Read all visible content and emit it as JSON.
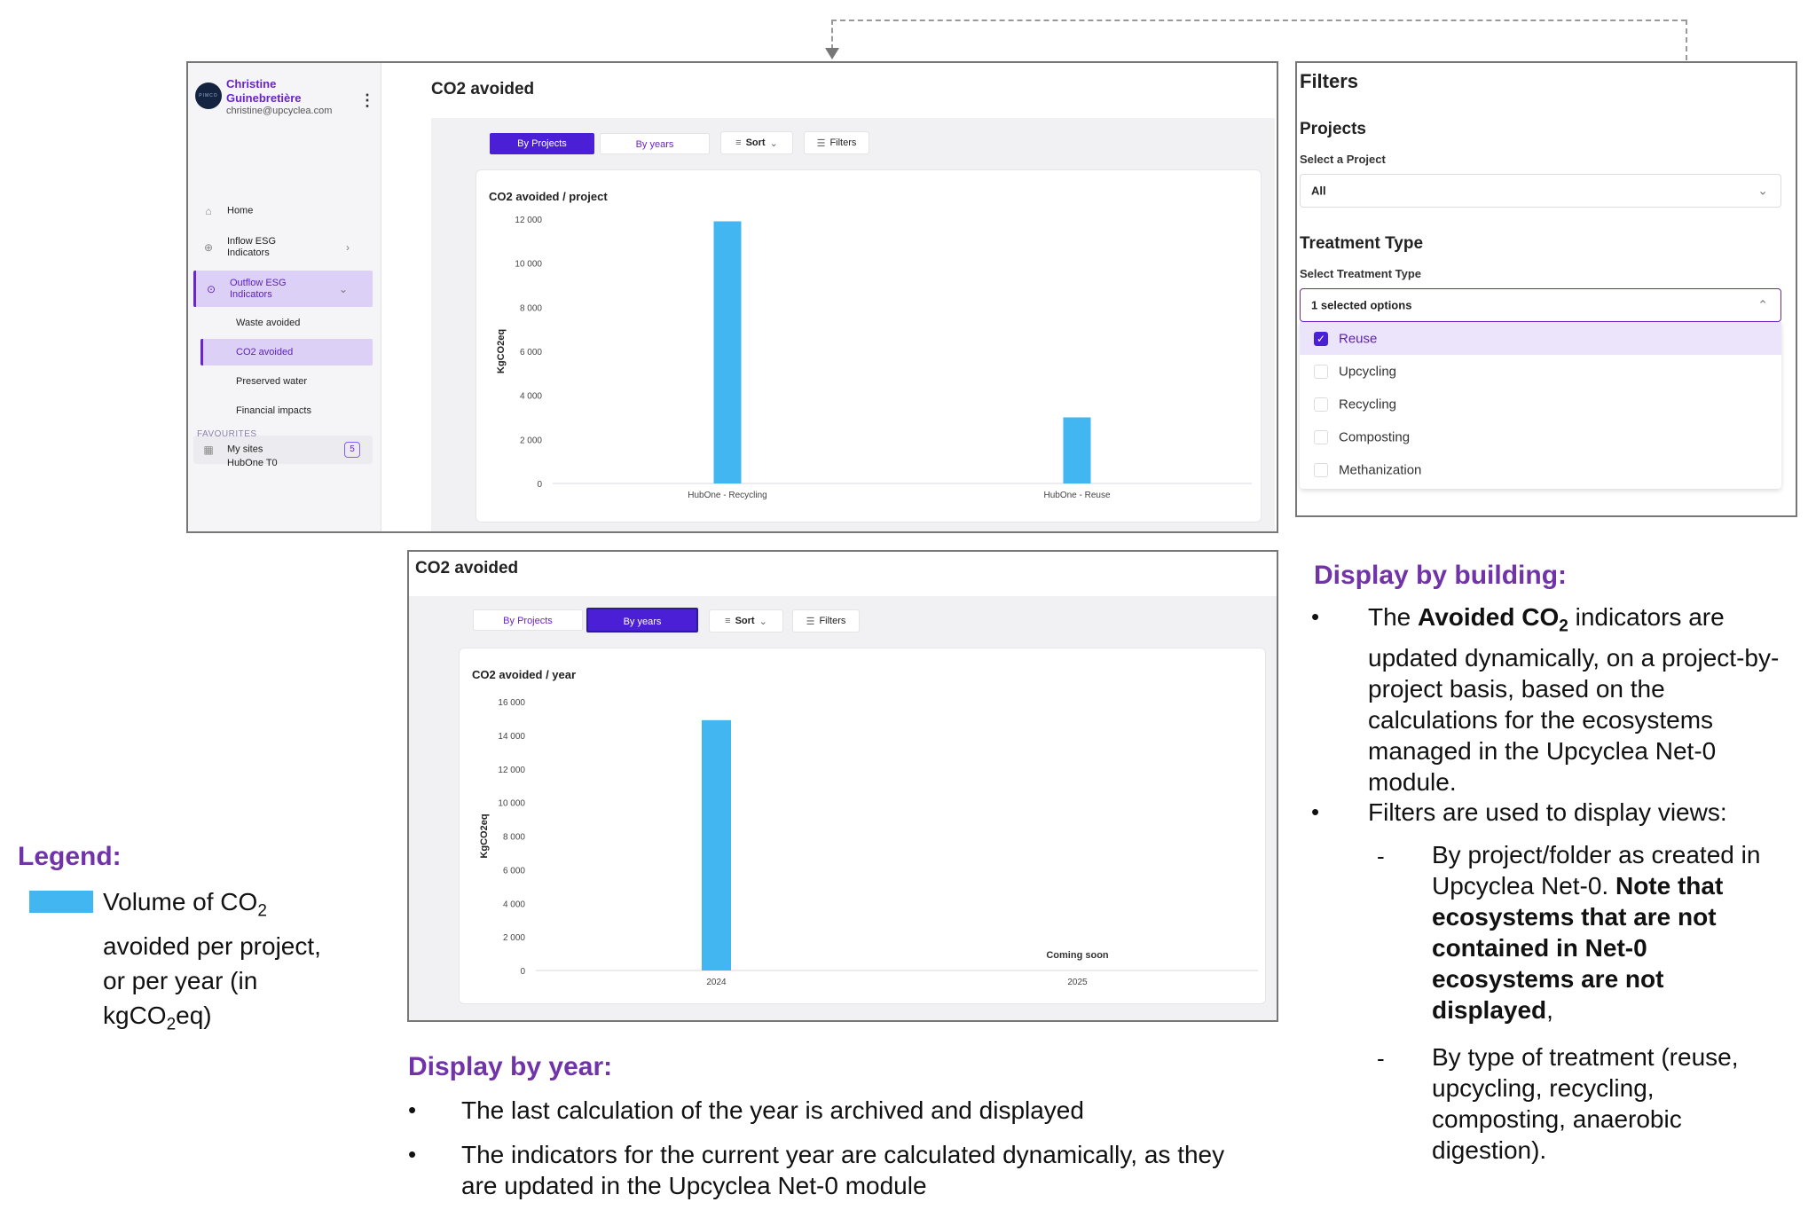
{
  "app": {
    "user_name": "Christine Guinebretière",
    "user_email": "christine@upcyclea.com",
    "avatar_text": "PIMCO",
    "nav": {
      "home": "Home",
      "inflow": "Inflow ESG Indicators",
      "outflow": "Outflow ESG Indicators",
      "sub_waste": "Waste avoided",
      "sub_co2": "CO2 avoided",
      "sub_water": "Preserved water",
      "sub_fin": "Financial impacts",
      "my_sites": "My sites",
      "my_sites_count": "5"
    },
    "favourites_heading": "FAVOURITES",
    "favourite_item": "HubOne T0"
  },
  "top_view": {
    "page_title": "CO2 avoided",
    "tab_projects": "By Projects",
    "tab_years": "By years",
    "sort_label": "Sort",
    "filters_label": "Filters",
    "card_title": "CO2 avoided / project"
  },
  "bottom_view": {
    "page_title": "CO2 avoided",
    "tab_projects": "By Projects",
    "tab_years": "By years",
    "sort_label": "Sort",
    "filters_label": "Filters",
    "card_title": "CO2 avoided / year",
    "coming_soon": "Coming soon"
  },
  "filters": {
    "title": "Filters",
    "projects_heading": "Projects",
    "projects_label": "Select a Project",
    "projects_value": "All",
    "treatment_heading": "Treatment Type",
    "treatment_label": "Select Treatment Type",
    "treatment_value": "1 selected options",
    "options": [
      {
        "label": "Reuse",
        "checked": true
      },
      {
        "label": "Upcycling",
        "checked": false
      },
      {
        "label": "Recycling",
        "checked": false
      },
      {
        "label": "Composting",
        "checked": false
      },
      {
        "label": "Methanization",
        "checked": false
      }
    ]
  },
  "annotations": {
    "legend_title": "Legend:",
    "legend_text_1": "Volume of CO",
    "legend_text_sub": "2",
    "legend_text_2": "avoided per project,",
    "legend_text_3": "or per year (in",
    "legend_text_4": "kgCO",
    "legend_text_4_sub": "2",
    "legend_text_4_end": "eq)",
    "building_title": "Display by building:",
    "building_b1_pre": "The ",
    "building_b1_bold": "Avoided CO",
    "building_b1_bold_sub": "2",
    "building_b1_post": " indicators are updated dynamically, on a project-by-project basis, based on the calculations for the ecosystems managed in the Upcyclea Net-0 module.",
    "building_b2": "Filters are used to display views:",
    "building_s1_pre": "By project/folder as created in Upcyclea Net-0. ",
    "building_s1_bold": "Note that ecosystems that are not contained in Net-0 ecosystems are not displayed",
    "building_s1_post": ",",
    "building_s2": "By type of treatment (reuse, upcycling, recycling, composting, anaerobic digestion).",
    "year_title": "Display by year:",
    "year_b1": "The last calculation of the year is archived and displayed",
    "year_b2": "The indicators for the current year are calculated dynamically, as they are updated in the Upcyclea Net-0 module"
  },
  "colors": {
    "bar": "#41b6f0",
    "accent": "#4b1fd6",
    "heading": "#7033a8"
  },
  "chart_data": [
    {
      "type": "bar",
      "title": "CO2 avoided / project",
      "ylabel": "KgCO2eq",
      "xlabel": "",
      "categories": [
        "HubOne - Recycling",
        "HubOne - Reuse"
      ],
      "values": [
        11900,
        3000
      ],
      "ylim": [
        0,
        12000
      ],
      "yticks": [
        0,
        2000,
        4000,
        6000,
        8000,
        10000,
        12000
      ],
      "ytick_labels": [
        "0",
        "2 000",
        "4 000",
        "6 000",
        "8 000",
        "10 000",
        "12 000"
      ],
      "grid": false
    },
    {
      "type": "bar",
      "title": "CO2 avoided / year",
      "ylabel": "KgCO2eq",
      "xlabel": "",
      "categories": [
        "2024",
        "2025"
      ],
      "values": [
        14900,
        null
      ],
      "ylim": [
        0,
        16000
      ],
      "yticks": [
        0,
        2000,
        4000,
        6000,
        8000,
        10000,
        12000,
        14000,
        16000
      ],
      "ytick_labels": [
        "0",
        "2 000",
        "4 000",
        "6 000",
        "8 000",
        "10 000",
        "12 000",
        "14 000",
        "16 000"
      ],
      "grid": false
    }
  ]
}
